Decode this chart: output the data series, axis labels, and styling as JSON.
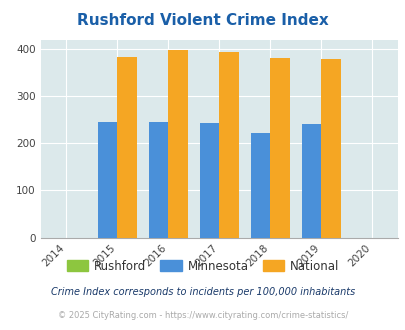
{
  "title": "Rushford Violent Crime Index",
  "years": [
    2014,
    2015,
    2016,
    2017,
    2018,
    2019,
    2020
  ],
  "data_years": [
    2015,
    2016,
    2017,
    2018,
    2019
  ],
  "rushford": [
    0,
    0,
    0,
    0,
    0
  ],
  "minnesota": [
    246,
    246,
    243,
    222,
    240
  ],
  "national": [
    384,
    398,
    394,
    381,
    379
  ],
  "bar_width": 0.38,
  "rushford_color": "#8dc63f",
  "minnesota_color": "#4a90d9",
  "national_color": "#f5a623",
  "bg_color": "#dce9eb",
  "title_color": "#1a5fa8",
  "ylim": [
    0,
    420
  ],
  "yticks": [
    0,
    100,
    200,
    300,
    400
  ],
  "note_text": "Crime Index corresponds to incidents per 100,000 inhabitants",
  "footer_text": "© 2025 CityRating.com - https://www.cityrating.com/crime-statistics/",
  "note_color": "#1a3a6a",
  "footer_color": "#aaaaaa"
}
